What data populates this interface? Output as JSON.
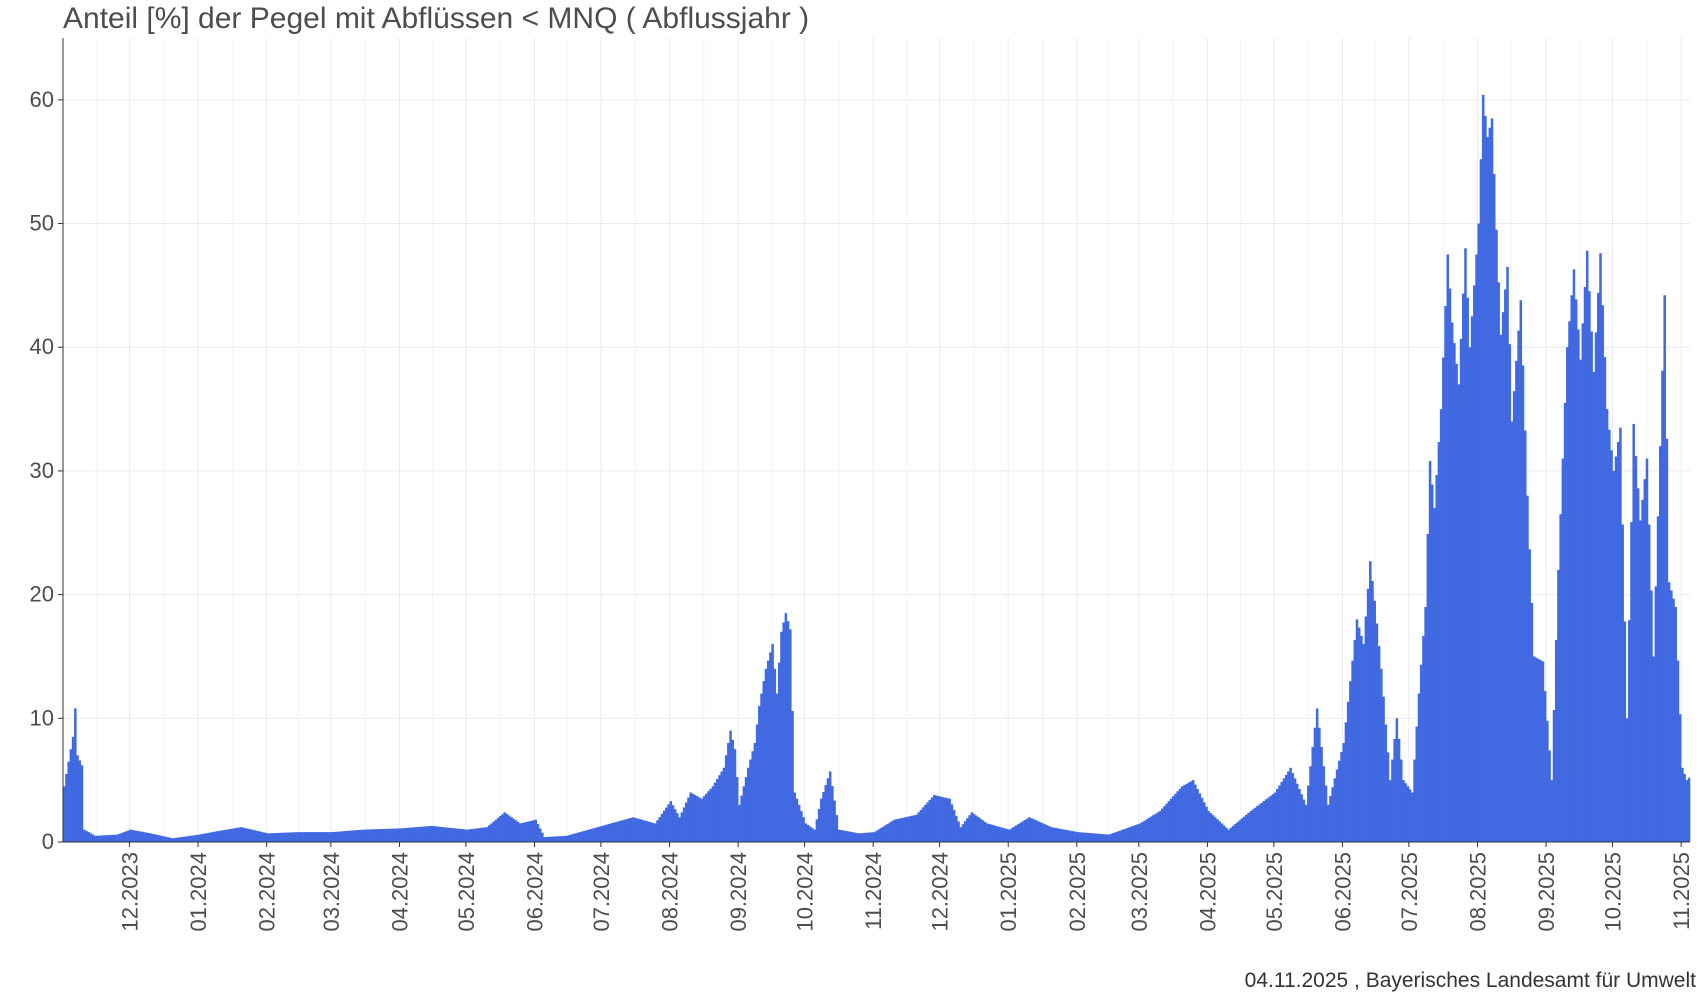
{
  "chart_data": {
    "type": "bar",
    "title": "Anteil [%] der Pegel mit Abflüssen < MNQ ( Abflussjahr )",
    "xlabel": "",
    "ylabel": "",
    "ylim": [
      0,
      65
    ],
    "y_ticks": [
      0,
      10,
      20,
      30,
      40,
      50,
      60
    ],
    "x_tick_labels": [
      "12.2023",
      "01.2024",
      "02.2024",
      "03.2024",
      "04.2024",
      "05.2024",
      "06.2024",
      "07.2024",
      "08.2024",
      "09.2024",
      "10.2024",
      "11.2024",
      "12.2024",
      "01.2025",
      "02.2025",
      "03.2025",
      "04.2025",
      "05.2025",
      "06.2025",
      "07.2025",
      "08.2025",
      "09.2025",
      "10.2025",
      "11.2025"
    ],
    "x_range": [
      "2023-11-01",
      "2025-11-04"
    ],
    "grid": true,
    "bar_color": "#4169E1",
    "series": [
      {
        "points": [
          [
            "2023-11-01",
            4.5
          ],
          [
            "2023-11-03",
            6.5
          ],
          [
            "2023-11-05",
            8.5
          ],
          [
            "2023-11-06",
            10.8
          ],
          [
            "2023-11-07",
            7
          ],
          [
            "2023-11-09",
            6.2
          ],
          [
            "2023-11-10",
            1
          ],
          [
            "2023-11-15",
            0.5
          ],
          [
            "2023-11-25",
            0.6
          ],
          [
            "2023-12-01",
            1
          ],
          [
            "2023-12-10",
            0.7
          ],
          [
            "2023-12-20",
            0.3
          ],
          [
            "2024-01-01",
            0.6
          ],
          [
            "2024-01-10",
            0.9
          ],
          [
            "2024-01-20",
            1.2
          ],
          [
            "2024-02-01",
            0.7
          ],
          [
            "2024-02-15",
            0.8
          ],
          [
            "2024-03-01",
            0.8
          ],
          [
            "2024-03-15",
            1
          ],
          [
            "2024-04-01",
            1.1
          ],
          [
            "2024-04-15",
            1.3
          ],
          [
            "2024-05-01",
            1
          ],
          [
            "2024-05-10",
            1.2
          ],
          [
            "2024-05-18",
            2.4
          ],
          [
            "2024-05-25",
            1.5
          ],
          [
            "2024-06-01",
            1.8
          ],
          [
            "2024-06-05",
            0.4
          ],
          [
            "2024-06-15",
            0.5
          ],
          [
            "2024-06-25",
            1
          ],
          [
            "2024-07-05",
            1.5
          ],
          [
            "2024-07-15",
            2
          ],
          [
            "2024-07-25",
            1.5
          ],
          [
            "2024-08-01",
            3.3
          ],
          [
            "2024-08-05",
            2
          ],
          [
            "2024-08-10",
            4
          ],
          [
            "2024-08-15",
            3.5
          ],
          [
            "2024-08-20",
            4.5
          ],
          [
            "2024-08-25",
            6
          ],
          [
            "2024-08-28",
            9
          ],
          [
            "2024-08-30",
            7.5
          ],
          [
            "2024-09-01",
            3
          ],
          [
            "2024-09-05",
            6
          ],
          [
            "2024-09-08",
            8
          ],
          [
            "2024-09-10",
            11
          ],
          [
            "2024-09-13",
            14
          ],
          [
            "2024-09-16",
            16
          ],
          [
            "2024-09-18",
            12
          ],
          [
            "2024-09-20",
            17
          ],
          [
            "2024-09-22",
            18.5
          ],
          [
            "2024-09-24",
            17.2
          ],
          [
            "2024-09-26",
            4
          ],
          [
            "2024-10-01",
            1.5
          ],
          [
            "2024-10-05",
            1
          ],
          [
            "2024-10-08",
            3.5
          ],
          [
            "2024-10-12",
            5.7
          ],
          [
            "2024-10-16",
            1
          ],
          [
            "2024-10-25",
            0.7
          ],
          [
            "2024-11-01",
            0.8
          ],
          [
            "2024-11-10",
            1.8
          ],
          [
            "2024-11-20",
            2.2
          ],
          [
            "2024-11-28",
            3.8
          ],
          [
            "2024-12-05",
            3.5
          ],
          [
            "2024-12-10",
            1.2
          ],
          [
            "2024-12-15",
            2.4
          ],
          [
            "2024-12-22",
            1.5
          ],
          [
            "2025-01-01",
            1
          ],
          [
            "2025-01-10",
            2
          ],
          [
            "2025-01-20",
            1.2
          ],
          [
            "2025-02-01",
            0.8
          ],
          [
            "2025-02-15",
            0.6
          ],
          [
            "2025-03-01",
            1.5
          ],
          [
            "2025-03-10",
            2.5
          ],
          [
            "2025-03-20",
            4.5
          ],
          [
            "2025-03-25",
            5
          ],
          [
            "2025-04-01",
            2.5
          ],
          [
            "2025-04-10",
            1
          ],
          [
            "2025-04-20",
            2.5
          ],
          [
            "2025-05-01",
            4
          ],
          [
            "2025-05-08",
            6
          ],
          [
            "2025-05-15",
            3
          ],
          [
            "2025-05-20",
            10.8
          ],
          [
            "2025-05-25",
            3
          ],
          [
            "2025-06-01",
            8
          ],
          [
            "2025-06-04",
            13
          ],
          [
            "2025-06-07",
            18
          ],
          [
            "2025-06-10",
            16
          ],
          [
            "2025-06-13",
            22.7
          ],
          [
            "2025-06-15",
            19.5
          ],
          [
            "2025-06-18",
            14
          ],
          [
            "2025-06-22",
            5
          ],
          [
            "2025-06-25",
            10
          ],
          [
            "2025-06-28",
            5
          ],
          [
            "2025-07-02",
            4
          ],
          [
            "2025-07-05",
            12
          ],
          [
            "2025-07-08",
            19
          ],
          [
            "2025-07-10",
            30.8
          ],
          [
            "2025-07-12",
            27
          ],
          [
            "2025-07-15",
            35
          ],
          [
            "2025-07-18",
            47.5
          ],
          [
            "2025-07-20",
            42
          ],
          [
            "2025-07-23",
            37
          ],
          [
            "2025-07-26",
            48
          ],
          [
            "2025-07-28",
            40
          ],
          [
            "2025-08-01",
            50
          ],
          [
            "2025-08-03",
            60.4
          ],
          [
            "2025-08-05",
            57
          ],
          [
            "2025-08-07",
            58.5
          ],
          [
            "2025-08-09",
            49.5
          ],
          [
            "2025-08-11",
            41
          ],
          [
            "2025-08-14",
            46.5
          ],
          [
            "2025-08-16",
            34
          ],
          [
            "2025-08-20",
            43.8
          ],
          [
            "2025-08-23",
            28
          ],
          [
            "2025-08-26",
            15
          ],
          [
            "2025-08-30",
            14.6
          ],
          [
            "2025-09-03",
            5
          ],
          [
            "2025-09-06",
            22
          ],
          [
            "2025-09-10",
            40
          ],
          [
            "2025-09-13",
            46.3
          ],
          [
            "2025-09-16",
            39
          ],
          [
            "2025-09-19",
            47.8
          ],
          [
            "2025-09-22",
            38
          ],
          [
            "2025-09-25",
            47.6
          ],
          [
            "2025-09-28",
            35
          ],
          [
            "2025-10-01",
            30
          ],
          [
            "2025-10-04",
            33.5
          ],
          [
            "2025-10-07",
            10
          ],
          [
            "2025-10-10",
            33.8
          ],
          [
            "2025-10-13",
            26
          ],
          [
            "2025-10-16",
            31
          ],
          [
            "2025-10-19",
            15
          ],
          [
            "2025-10-22",
            32
          ],
          [
            "2025-10-24",
            44.2
          ],
          [
            "2025-10-26",
            21
          ],
          [
            "2025-10-29",
            19
          ],
          [
            "2025-11-01",
            6
          ],
          [
            "2025-11-03",
            5
          ],
          [
            "2025-11-04",
            5.2
          ]
        ]
      }
    ]
  },
  "credit": "04.11.2025 , Bayerisches Landesamt für Umwelt"
}
